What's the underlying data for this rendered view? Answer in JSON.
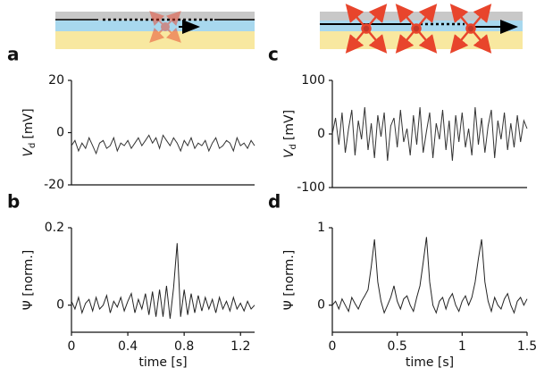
{
  "chart_data": [
    {
      "type": "line",
      "label": "a",
      "ylabel": {
        "symbol": "V",
        "subscript": "d",
        "unit": "[mV]"
      },
      "color": "#333333",
      "xlim": [
        0,
        1.3
      ],
      "ylim": [
        -20,
        20
      ],
      "yticks": [
        -20,
        0,
        20
      ],
      "x": [
        0,
        0.025,
        0.05,
        0.075,
        0.1,
        0.125,
        0.15,
        0.175,
        0.2,
        0.225,
        0.25,
        0.275,
        0.3,
        0.325,
        0.35,
        0.375,
        0.4,
        0.425,
        0.45,
        0.475,
        0.5,
        0.525,
        0.55,
        0.575,
        0.6,
        0.625,
        0.65,
        0.675,
        0.7,
        0.725,
        0.75,
        0.775,
        0.8,
        0.825,
        0.85,
        0.875,
        0.9,
        0.925,
        0.95,
        0.975,
        1,
        1.025,
        1.05,
        1.075,
        1.1,
        1.125,
        1.15,
        1.175,
        1.2,
        1.225,
        1.25,
        1.275,
        1.3
      ],
      "values": [
        -5,
        -3,
        -7,
        -4,
        -6,
        -2,
        -5,
        -8,
        -4,
        -3,
        -6,
        -5,
        -2,
        -7,
        -4,
        -5,
        -3,
        -6,
        -4,
        -2,
        -5,
        -3,
        -1,
        -4,
        -2,
        -6,
        -1,
        -3,
        -5,
        -2,
        -4,
        -7,
        -3,
        -5,
        -2,
        -6,
        -4,
        -5,
        -3,
        -7,
        -4,
        -2,
        -6,
        -5,
        -3,
        -4,
        -7,
        -2,
        -5,
        -4,
        -6,
        -3,
        -5
      ]
    },
    {
      "type": "line",
      "label": "b",
      "ylabel": "Ψ [norm.]",
      "xlabel": "time [s]",
      "color": "#222222",
      "xlim": [
        0,
        1.3
      ],
      "ylim": [
        -0.07,
        0.2
      ],
      "yticks": [
        0,
        0.2
      ],
      "xticks": [
        0,
        0.4,
        0.8,
        1.2
      ],
      "x": [
        0,
        0.025,
        0.05,
        0.075,
        0.1,
        0.125,
        0.15,
        0.175,
        0.2,
        0.225,
        0.25,
        0.275,
        0.3,
        0.325,
        0.35,
        0.375,
        0.4,
        0.425,
        0.45,
        0.475,
        0.5,
        0.525,
        0.55,
        0.575,
        0.6,
        0.625,
        0.65,
        0.675,
        0.7,
        0.725,
        0.75,
        0.775,
        0.8,
        0.825,
        0.85,
        0.875,
        0.9,
        0.925,
        0.95,
        0.975,
        1,
        1.025,
        1.05,
        1.075,
        1.1,
        1.125,
        1.15,
        1.175,
        1.2,
        1.225,
        1.25,
        1.275,
        1.3
      ],
      "values": [
        0.01,
        -0.01,
        0.02,
        -0.02,
        0.005,
        0.015,
        -0.015,
        0.02,
        -0.01,
        0,
        0.025,
        -0.02,
        0.01,
        -0.005,
        0.02,
        -0.015,
        0.01,
        0.03,
        -0.02,
        0.015,
        -0.01,
        0.03,
        -0.025,
        0.035,
        -0.03,
        0.04,
        -0.03,
        0.05,
        -0.035,
        0.045,
        0.16,
        -0.03,
        0.04,
        -0.025,
        0.03,
        -0.02,
        0.025,
        -0.015,
        0.02,
        -0.01,
        0.015,
        -0.02,
        0.02,
        -0.01,
        0.01,
        -0.015,
        0.02,
        -0.01,
        0.005,
        -0.015,
        0.01,
        -0.01,
        0
      ]
    },
    {
      "type": "line",
      "label": "c",
      "ylabel": {
        "symbol": "V",
        "subscript": "d",
        "unit": "[mV]"
      },
      "color": "#333333",
      "xlim": [
        0,
        1.5
      ],
      "ylim": [
        -100,
        100
      ],
      "yticks": [
        -100,
        0,
        100
      ],
      "x": [
        0,
        0.025,
        0.05,
        0.075,
        0.1,
        0.125,
        0.15,
        0.175,
        0.2,
        0.225,
        0.25,
        0.275,
        0.3,
        0.325,
        0.35,
        0.375,
        0.4,
        0.425,
        0.45,
        0.475,
        0.5,
        0.525,
        0.55,
        0.575,
        0.6,
        0.625,
        0.65,
        0.675,
        0.7,
        0.725,
        0.75,
        0.775,
        0.8,
        0.825,
        0.85,
        0.875,
        0.9,
        0.925,
        0.95,
        0.975,
        1,
        1.025,
        1.05,
        1.075,
        1.1,
        1.125,
        1.15,
        1.175,
        1.2,
        1.225,
        1.25,
        1.275,
        1.3,
        1.325,
        1.35,
        1.375,
        1.4,
        1.425,
        1.45,
        1.475,
        1.5
      ],
      "values": [
        0,
        30,
        -20,
        40,
        -35,
        10,
        45,
        -40,
        25,
        -10,
        50,
        -30,
        20,
        -45,
        35,
        -5,
        40,
        -50,
        15,
        30,
        -25,
        45,
        -15,
        10,
        -40,
        35,
        -20,
        50,
        -35,
        5,
        40,
        -45,
        20,
        -10,
        45,
        -30,
        25,
        -50,
        35,
        -15,
        40,
        -25,
        10,
        -40,
        50,
        -20,
        30,
        -35,
        15,
        45,
        -45,
        25,
        -10,
        40,
        -30,
        20,
        -25,
        35,
        -15,
        25,
        10
      ]
    },
    {
      "type": "line",
      "label": "d",
      "ylabel": "Ψ [norm.]",
      "xlabel": "time [s]",
      "color": "#222222",
      "xlim": [
        0,
        1.5
      ],
      "ylim": [
        -0.35,
        1
      ],
      "yticks": [
        0,
        1
      ],
      "xticks": [
        0,
        0.5,
        1,
        1.5
      ],
      "x": [
        0,
        0.025,
        0.05,
        0.075,
        0.1,
        0.125,
        0.15,
        0.175,
        0.2,
        0.225,
        0.25,
        0.275,
        0.3,
        0.325,
        0.35,
        0.375,
        0.4,
        0.425,
        0.45,
        0.475,
        0.5,
        0.525,
        0.55,
        0.575,
        0.6,
        0.625,
        0.65,
        0.675,
        0.7,
        0.725,
        0.75,
        0.775,
        0.8,
        0.825,
        0.85,
        0.875,
        0.9,
        0.925,
        0.95,
        0.975,
        1,
        1.025,
        1.05,
        1.075,
        1.1,
        1.125,
        1.15,
        1.175,
        1.2,
        1.225,
        1.25,
        1.275,
        1.3,
        1.325,
        1.35,
        1.375,
        1.4,
        1.425,
        1.45,
        1.475,
        1.5
      ],
      "values": [
        0,
        0.05,
        -0.05,
        0.08,
        0,
        -0.08,
        0.1,
        0.02,
        -0.05,
        0.05,
        0.12,
        0.2,
        0.5,
        0.85,
        0.3,
        0.05,
        -0.1,
        0,
        0.1,
        0.25,
        0.05,
        -0.05,
        0.08,
        0.12,
        0,
        -0.08,
        0.1,
        0.25,
        0.55,
        0.88,
        0.3,
        0,
        -0.1,
        0.05,
        0.1,
        -0.05,
        0.08,
        0.15,
        0,
        -0.08,
        0.05,
        0.12,
        0,
        0.1,
        0.3,
        0.6,
        0.85,
        0.3,
        0.05,
        -0.08,
        0.1,
        0,
        -0.05,
        0.08,
        0.15,
        0,
        -0.1,
        0.05,
        0.1,
        0,
        0.08
      ]
    }
  ]
}
